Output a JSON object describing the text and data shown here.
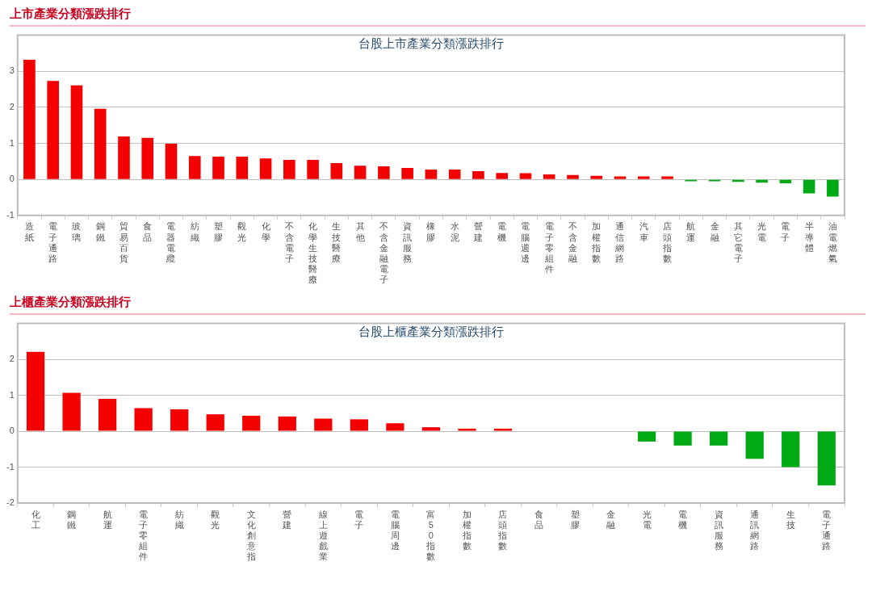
{
  "chart_data": [
    {
      "type": "bar",
      "subtitle": "上市產業分類漲跌排行",
      "title": "台股上市產業分類漲跌排行",
      "categories": [
        "造紙",
        "電子通路",
        "玻璃",
        "鋼鐵",
        "貿易百貨",
        "食品",
        "電器電纜",
        "紡織",
        "塑膠",
        "觀光",
        "化學",
        "不含電子",
        "化學生技醫療",
        "生技醫療",
        "其他",
        "不含金融電子",
        "資訊服務",
        "橡膠",
        "水泥",
        "營建",
        "電機",
        "電腦週邊",
        "電子零組件",
        "不含金融",
        "加權指數",
        "通信網路",
        "汽車",
        "店頭指數",
        "航運",
        "金融",
        "其它電子",
        "光電",
        "電子",
        "半導體",
        "油電燃氣"
      ],
      "values": [
        3.32,
        2.73,
        2.61,
        1.96,
        1.19,
        1.15,
        0.99,
        0.65,
        0.63,
        0.63,
        0.58,
        0.54,
        0.54,
        0.45,
        0.38,
        0.36,
        0.32,
        0.27,
        0.27,
        0.23,
        0.18,
        0.17,
        0.14,
        0.12,
        0.1,
        0.08,
        0.08,
        0.08,
        -0.05,
        -0.05,
        -0.07,
        -0.09,
        -0.11,
        -0.39,
        -0.48
      ],
      "colors": [
        "#f50000",
        "#f50000",
        "#f50000",
        "#f50000",
        "#f50000",
        "#f50000",
        "#f50000",
        "#f50000",
        "#f50000",
        "#f50000",
        "#f50000",
        "#f50000",
        "#f50000",
        "#f50000",
        "#f50000",
        "#f50000",
        "#f50000",
        "#f50000",
        "#f50000",
        "#f50000",
        "#f50000",
        "#f50000",
        "#f50000",
        "#f50000",
        "#f50000",
        "#f50000",
        "#f50000",
        "#f50000",
        "#00aa14",
        "#00aa14",
        "#00aa14",
        "#00aa14",
        "#00aa14",
        "#00aa14",
        "#00aa14"
      ],
      "ylim": [
        -1,
        4
      ],
      "yticks": [
        -1,
        0,
        1,
        2,
        3
      ],
      "grid": "y"
    },
    {
      "type": "bar",
      "subtitle": "上櫃產業分類漲跌排行",
      "title": "台股上櫃產業分類漲跌排行",
      "categories": [
        "化工",
        "鋼鐵",
        "航運",
        "電子零組件",
        "紡織",
        "觀光",
        "文化創意指",
        "營建",
        "線上遊戲業",
        "電子",
        "電腦周邊",
        "富50指數",
        "加權指數",
        "店頭指數",
        "食品",
        "塑膠",
        "金融",
        "光電",
        "電機",
        "資訊服務",
        "通訊網路",
        "生技",
        "電子通路"
      ],
      "values": [
        2.21,
        1.07,
        0.9,
        0.64,
        0.61,
        0.47,
        0.43,
        0.41,
        0.35,
        0.33,
        0.22,
        0.11,
        0.07,
        0.07,
        0,
        0,
        0,
        -0.29,
        -0.4,
        -0.4,
        -0.77,
        -1.0,
        -1.51
      ],
      "colors": [
        "#f50000",
        "#f50000",
        "#f50000",
        "#f50000",
        "#f50000",
        "#f50000",
        "#f50000",
        "#f50000",
        "#f50000",
        "#f50000",
        "#f50000",
        "#f50000",
        "#f50000",
        "#f50000",
        "#f50000",
        "#f50000",
        "#f50000",
        "#00aa14",
        "#00aa14",
        "#00aa14",
        "#00aa14",
        "#00aa14",
        "#00aa14"
      ],
      "ylim": [
        -2,
        3
      ],
      "yticks": [
        -2,
        -1,
        0,
        1,
        2
      ],
      "grid": "y"
    }
  ]
}
